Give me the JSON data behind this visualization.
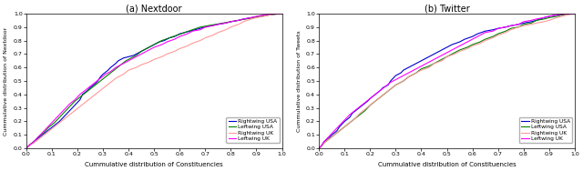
{
  "subplot_titles": [
    "(a) Nextdoor",
    "(b) Twitter"
  ],
  "xlabel": "Cummulative distribution of Constituencies",
  "ylabel_left": "Cummulative distribution of Nextdoor",
  "ylabel_right": "Cummulative distribution of Tweets",
  "legend_labels": [
    "Rightwing USA",
    "Leftwing USA",
    "Rightwing UK",
    "Leftwing UK"
  ],
  "colors": [
    "#0000cd",
    "#008000",
    "#ff9999",
    "#ff00ff"
  ],
  "xlim": [
    0.0,
    1.0
  ],
  "ylim": [
    0.0,
    1.0
  ],
  "xticks": [
    0.0,
    0.1,
    0.2,
    0.3,
    0.4,
    0.5,
    0.6,
    0.7,
    0.8,
    0.9,
    1.0
  ],
  "yticks": [
    0.0,
    0.1,
    0.2,
    0.3,
    0.4,
    0.5,
    0.6,
    0.7,
    0.8,
    0.9,
    1.0
  ],
  "linewidth": 0.8,
  "nextdoor": {
    "rightwing_usa": {
      "x": [
        0.0,
        0.01,
        0.03,
        0.05,
        0.07,
        0.09,
        0.11,
        0.13,
        0.15,
        0.17,
        0.19,
        0.21,
        0.22,
        0.24,
        0.25,
        0.27,
        0.28,
        0.29,
        0.3,
        0.32,
        0.33,
        0.35,
        0.36,
        0.38,
        0.4,
        0.42,
        0.43,
        0.45,
        0.46,
        0.48,
        0.5,
        0.52,
        0.54,
        0.56,
        0.58,
        0.6,
        0.62,
        0.64,
        0.66,
        0.68,
        0.7,
        0.72,
        0.75,
        0.78,
        0.8,
        0.83,
        0.85,
        0.88,
        0.9,
        0.93,
        0.95,
        0.97,
        1.0
      ],
      "y": [
        0.0,
        0.02,
        0.05,
        0.08,
        0.11,
        0.14,
        0.17,
        0.2,
        0.24,
        0.28,
        0.32,
        0.36,
        0.4,
        0.43,
        0.45,
        0.48,
        0.5,
        0.53,
        0.55,
        0.58,
        0.6,
        0.63,
        0.65,
        0.67,
        0.68,
        0.69,
        0.7,
        0.72,
        0.73,
        0.75,
        0.77,
        0.79,
        0.8,
        0.82,
        0.83,
        0.85,
        0.86,
        0.87,
        0.88,
        0.89,
        0.9,
        0.91,
        0.92,
        0.93,
        0.94,
        0.95,
        0.96,
        0.97,
        0.975,
        0.985,
        0.99,
        0.995,
        1.0
      ]
    },
    "leftwing_usa": {
      "x": [
        0.0,
        0.01,
        0.03,
        0.05,
        0.07,
        0.09,
        0.11,
        0.13,
        0.15,
        0.17,
        0.19,
        0.21,
        0.23,
        0.25,
        0.27,
        0.29,
        0.31,
        0.33,
        0.35,
        0.37,
        0.39,
        0.41,
        0.43,
        0.45,
        0.47,
        0.5,
        0.53,
        0.56,
        0.59,
        0.62,
        0.65,
        0.68,
        0.71,
        0.74,
        0.77,
        0.8,
        0.83,
        0.86,
        0.89,
        0.92,
        0.95,
        0.97,
        1.0
      ],
      "y": [
        0.0,
        0.02,
        0.05,
        0.09,
        0.12,
        0.16,
        0.19,
        0.23,
        0.27,
        0.31,
        0.35,
        0.38,
        0.41,
        0.44,
        0.47,
        0.5,
        0.53,
        0.56,
        0.59,
        0.62,
        0.65,
        0.67,
        0.69,
        0.72,
        0.74,
        0.77,
        0.8,
        0.82,
        0.84,
        0.86,
        0.88,
        0.9,
        0.91,
        0.92,
        0.93,
        0.94,
        0.95,
        0.96,
        0.97,
        0.98,
        0.99,
        0.995,
        1.0
      ]
    },
    "rightwing_uk": {
      "x": [
        0.0,
        0.01,
        0.03,
        0.05,
        0.07,
        0.09,
        0.11,
        0.13,
        0.15,
        0.17,
        0.19,
        0.21,
        0.23,
        0.25,
        0.27,
        0.29,
        0.31,
        0.33,
        0.35,
        0.38,
        0.4,
        0.43,
        0.45,
        0.48,
        0.5,
        0.53,
        0.55,
        0.58,
        0.6,
        0.63,
        0.65,
        0.68,
        0.7,
        0.73,
        0.75,
        0.78,
        0.8,
        0.83,
        0.85,
        0.88,
        0.9,
        0.93,
        0.95,
        0.97,
        1.0
      ],
      "y": [
        0.0,
        0.02,
        0.04,
        0.07,
        0.1,
        0.13,
        0.16,
        0.19,
        0.22,
        0.25,
        0.28,
        0.31,
        0.34,
        0.37,
        0.4,
        0.43,
        0.46,
        0.49,
        0.52,
        0.55,
        0.58,
        0.6,
        0.62,
        0.64,
        0.66,
        0.68,
        0.7,
        0.72,
        0.74,
        0.76,
        0.78,
        0.8,
        0.82,
        0.84,
        0.86,
        0.88,
        0.9,
        0.92,
        0.94,
        0.96,
        0.97,
        0.98,
        0.99,
        0.995,
        1.0
      ]
    },
    "leftwing_uk": {
      "x": [
        0.0,
        0.01,
        0.03,
        0.05,
        0.07,
        0.09,
        0.11,
        0.13,
        0.15,
        0.17,
        0.19,
        0.21,
        0.23,
        0.25,
        0.27,
        0.29,
        0.31,
        0.33,
        0.35,
        0.37,
        0.39,
        0.41,
        0.43,
        0.45,
        0.47,
        0.5,
        0.53,
        0.55,
        0.58,
        0.6,
        0.63,
        0.65,
        0.68,
        0.7,
        0.73,
        0.75,
        0.78,
        0.8,
        0.83,
        0.85,
        0.88,
        0.9,
        0.93,
        0.95,
        0.97,
        1.0
      ],
      "y": [
        0.0,
        0.02,
        0.05,
        0.09,
        0.13,
        0.17,
        0.21,
        0.25,
        0.29,
        0.33,
        0.36,
        0.4,
        0.43,
        0.46,
        0.49,
        0.52,
        0.55,
        0.57,
        0.6,
        0.62,
        0.64,
        0.66,
        0.68,
        0.7,
        0.72,
        0.75,
        0.77,
        0.79,
        0.81,
        0.83,
        0.85,
        0.87,
        0.88,
        0.9,
        0.91,
        0.92,
        0.93,
        0.94,
        0.95,
        0.96,
        0.97,
        0.98,
        0.99,
        0.995,
        0.998,
        1.0
      ]
    }
  },
  "twitter": {
    "rightwing_usa": {
      "x": [
        0.0,
        0.01,
        0.02,
        0.04,
        0.05,
        0.07,
        0.08,
        0.09,
        0.1,
        0.12,
        0.13,
        0.15,
        0.17,
        0.19,
        0.2,
        0.22,
        0.24,
        0.25,
        0.27,
        0.28,
        0.29,
        0.3,
        0.32,
        0.33,
        0.35,
        0.37,
        0.39,
        0.41,
        0.43,
        0.45,
        0.47,
        0.5,
        0.52,
        0.55,
        0.57,
        0.6,
        0.62,
        0.65,
        0.68,
        0.7,
        0.73,
        0.75,
        0.78,
        0.8,
        0.83,
        0.85,
        0.88,
        0.9,
        0.93,
        0.95,
        0.97,
        1.0
      ],
      "y": [
        0.0,
        0.02,
        0.05,
        0.08,
        0.1,
        0.13,
        0.16,
        0.18,
        0.2,
        0.23,
        0.26,
        0.29,
        0.32,
        0.35,
        0.37,
        0.4,
        0.43,
        0.45,
        0.47,
        0.5,
        0.52,
        0.54,
        0.56,
        0.58,
        0.6,
        0.62,
        0.64,
        0.66,
        0.68,
        0.7,
        0.72,
        0.75,
        0.77,
        0.79,
        0.81,
        0.83,
        0.85,
        0.87,
        0.88,
        0.89,
        0.9,
        0.91,
        0.92,
        0.93,
        0.94,
        0.95,
        0.97,
        0.98,
        0.99,
        0.995,
        0.998,
        1.0
      ]
    },
    "leftwing_usa": {
      "x": [
        0.0,
        0.01,
        0.02,
        0.04,
        0.06,
        0.08,
        0.1,
        0.12,
        0.14,
        0.16,
        0.18,
        0.2,
        0.22,
        0.24,
        0.26,
        0.28,
        0.3,
        0.33,
        0.35,
        0.38,
        0.4,
        0.43,
        0.45,
        0.48,
        0.5,
        0.53,
        0.55,
        0.58,
        0.6,
        0.63,
        0.65,
        0.68,
        0.7,
        0.73,
        0.75,
        0.78,
        0.8,
        0.83,
        0.85,
        0.88,
        0.9,
        0.93,
        0.95,
        0.97,
        1.0
      ],
      "y": [
        0.0,
        0.02,
        0.04,
        0.07,
        0.1,
        0.13,
        0.16,
        0.19,
        0.22,
        0.25,
        0.28,
        0.32,
        0.35,
        0.38,
        0.41,
        0.44,
        0.47,
        0.5,
        0.53,
        0.56,
        0.59,
        0.61,
        0.63,
        0.66,
        0.68,
        0.71,
        0.73,
        0.75,
        0.77,
        0.79,
        0.81,
        0.83,
        0.85,
        0.87,
        0.89,
        0.9,
        0.92,
        0.93,
        0.95,
        0.96,
        0.97,
        0.98,
        0.99,
        0.995,
        1.0
      ]
    },
    "rightwing_uk": {
      "x": [
        0.0,
        0.01,
        0.02,
        0.04,
        0.06,
        0.08,
        0.1,
        0.12,
        0.14,
        0.16,
        0.18,
        0.2,
        0.22,
        0.24,
        0.26,
        0.28,
        0.3,
        0.33,
        0.35,
        0.38,
        0.4,
        0.43,
        0.45,
        0.48,
        0.5,
        0.53,
        0.55,
        0.58,
        0.6,
        0.63,
        0.65,
        0.68,
        0.7,
        0.73,
        0.75,
        0.78,
        0.8,
        0.83,
        0.85,
        0.88,
        0.9,
        0.93,
        0.95,
        0.97,
        1.0
      ],
      "y": [
        0.0,
        0.02,
        0.04,
        0.07,
        0.1,
        0.13,
        0.16,
        0.19,
        0.22,
        0.26,
        0.29,
        0.32,
        0.35,
        0.38,
        0.41,
        0.44,
        0.47,
        0.5,
        0.53,
        0.56,
        0.58,
        0.6,
        0.63,
        0.65,
        0.68,
        0.7,
        0.72,
        0.74,
        0.76,
        0.78,
        0.8,
        0.82,
        0.84,
        0.86,
        0.88,
        0.9,
        0.91,
        0.92,
        0.93,
        0.94,
        0.95,
        0.97,
        0.98,
        0.99,
        1.0
      ]
    },
    "leftwing_uk": {
      "x": [
        0.0,
        0.01,
        0.02,
        0.04,
        0.06,
        0.08,
        0.1,
        0.12,
        0.14,
        0.16,
        0.18,
        0.2,
        0.22,
        0.24,
        0.26,
        0.28,
        0.3,
        0.33,
        0.35,
        0.37,
        0.39,
        0.41,
        0.43,
        0.45,
        0.47,
        0.49,
        0.51,
        0.53,
        0.55,
        0.57,
        0.59,
        0.61,
        0.63,
        0.65,
        0.68,
        0.7,
        0.73,
        0.75,
        0.78,
        0.8,
        0.83,
        0.85,
        0.88,
        0.9,
        0.93,
        0.95,
        0.97,
        1.0
      ],
      "y": [
        0.0,
        0.02,
        0.05,
        0.09,
        0.13,
        0.17,
        0.21,
        0.25,
        0.28,
        0.31,
        0.34,
        0.37,
        0.4,
        0.43,
        0.46,
        0.49,
        0.51,
        0.54,
        0.56,
        0.58,
        0.6,
        0.62,
        0.64,
        0.66,
        0.68,
        0.7,
        0.72,
        0.74,
        0.76,
        0.78,
        0.8,
        0.82,
        0.84,
        0.86,
        0.87,
        0.89,
        0.9,
        0.91,
        0.92,
        0.94,
        0.95,
        0.96,
        0.97,
        0.98,
        0.99,
        0.995,
        0.998,
        1.0
      ]
    }
  }
}
